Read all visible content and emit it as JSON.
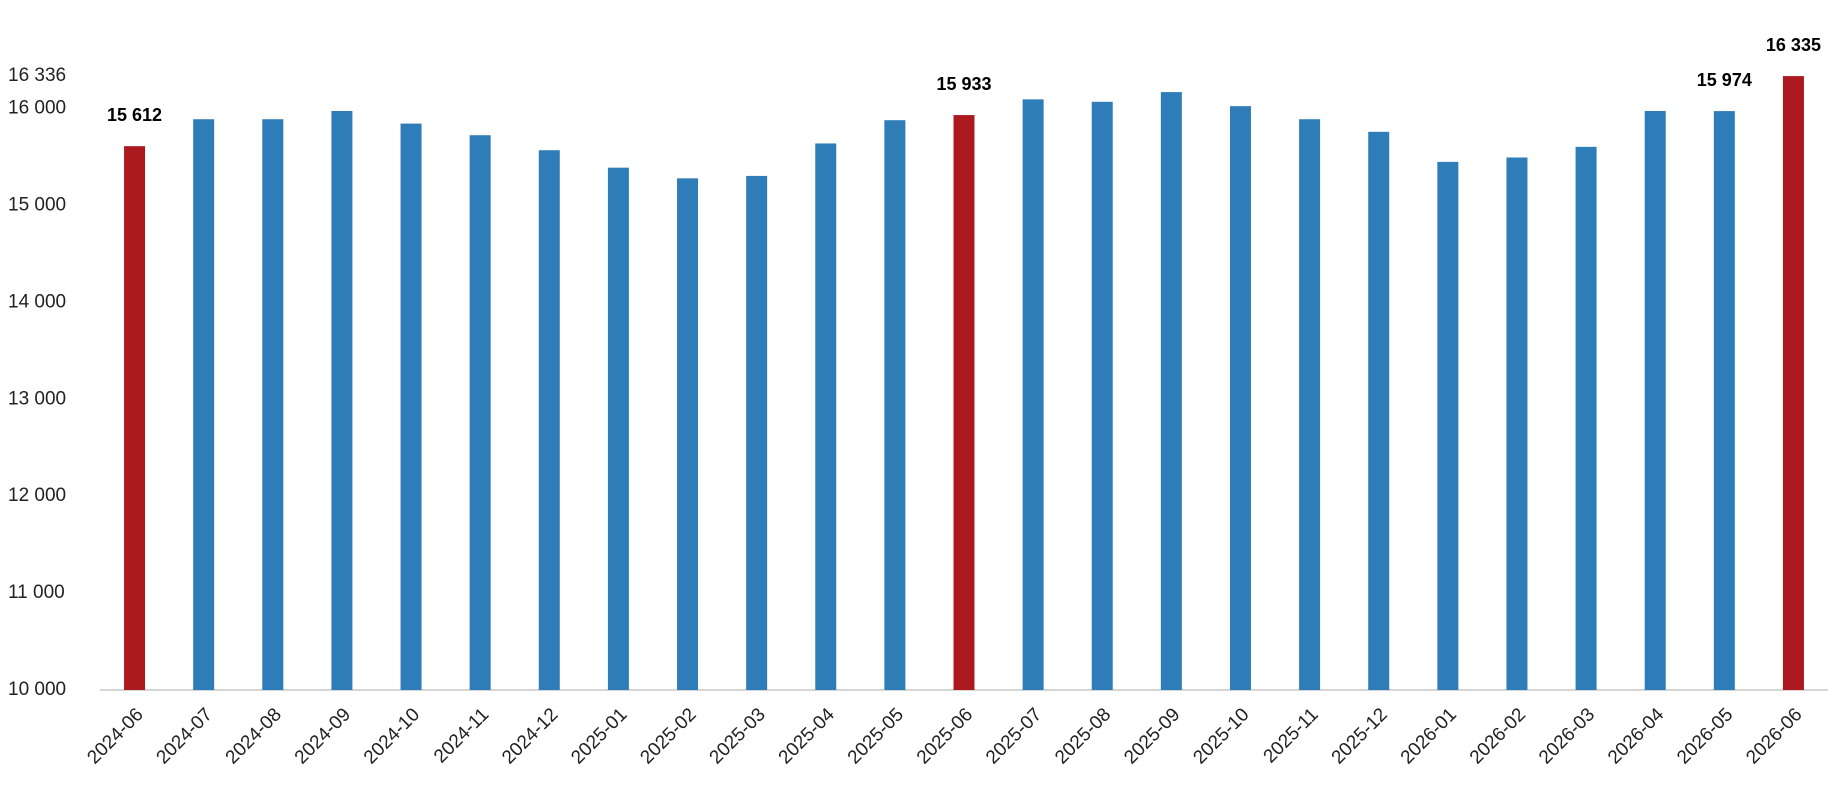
{
  "chart_data": {
    "type": "bar",
    "categories": [
      "2024-06",
      "2024-07",
      "2024-08",
      "2024-09",
      "2024-10",
      "2024-11",
      "2024-12",
      "2025-01",
      "2025-02",
      "2025-03",
      "2025-04",
      "2025-05",
      "2025-06",
      "2025-07",
      "2025-08",
      "2025-09",
      "2025-10",
      "2025-11",
      "2025-12",
      "2026-01",
      "2026-02",
      "2026-03",
      "2026-04",
      "2026-05",
      "2026-06"
    ],
    "values": [
      15612,
      15890,
      15890,
      15975,
      15845,
      15725,
      15570,
      15390,
      15280,
      15305,
      15640,
      15880,
      15933,
      16095,
      16070,
      16170,
      16025,
      15890,
      15760,
      15450,
      15495,
      15605,
      15975,
      15974,
      16335
    ],
    "value_labels": [
      "15 612",
      null,
      null,
      null,
      null,
      null,
      null,
      null,
      null,
      null,
      null,
      null,
      "15 933",
      null,
      null,
      null,
      null,
      null,
      null,
      null,
      null,
      null,
      null,
      "15 974",
      "16 335"
    ],
    "colors": [
      "#ac1a20",
      "#2f7db8",
      "#2f7db8",
      "#2f7db8",
      "#2f7db8",
      "#2f7db8",
      "#2f7db8",
      "#2f7db8",
      "#2f7db8",
      "#2f7db8",
      "#2f7db8",
      "#2f7db8",
      "#ac1a20",
      "#2f7db8",
      "#2f7db8",
      "#2f7db8",
      "#2f7db8",
      "#2f7db8",
      "#2f7db8",
      "#2f7db8",
      "#2f7db8",
      "#2f7db8",
      "#2f7db8",
      "#2f7db8",
      "#ac1a20"
    ],
    "ylim": [
      10000,
      16336
    ],
    "yticks": [
      {
        "value": 10000,
        "label": "10 000"
      },
      {
        "value": 11000,
        "label": "11 000"
      },
      {
        "value": 12000,
        "label": "12 000"
      },
      {
        "value": 13000,
        "label": "13 000"
      },
      {
        "value": 14000,
        "label": "14 000"
      },
      {
        "value": 15000,
        "label": "15 000"
      },
      {
        "value": 16000,
        "label": "16 000"
      },
      {
        "value": 16336,
        "label": "16 336"
      }
    ],
    "grid": false
  }
}
